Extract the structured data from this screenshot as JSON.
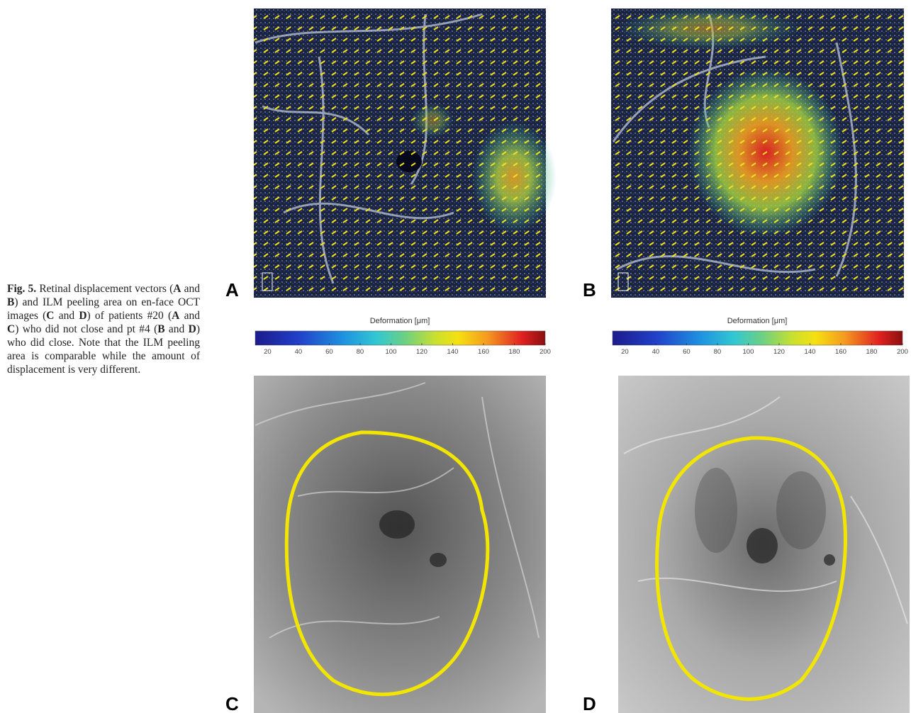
{
  "figure": {
    "caption": [
      {
        "text": "Fig. 5.",
        "bold": true
      },
      {
        "text": " Retinal displacement vectors (",
        "bold": false
      },
      {
        "text": "A",
        "bold": true
      },
      {
        "text": " and ",
        "bold": false
      },
      {
        "text": "B",
        "bold": true
      },
      {
        "text": ") and ILM peeling area on en-face OCT images (",
        "bold": false
      },
      {
        "text": "C",
        "bold": true
      },
      {
        "text": " and ",
        "bold": false
      },
      {
        "text": "D",
        "bold": true
      },
      {
        "text": ") of patients #20 (",
        "bold": false
      },
      {
        "text": "A",
        "bold": true
      },
      {
        "text": " and ",
        "bold": false
      },
      {
        "text": "C",
        "bold": true
      },
      {
        "text": ") who did not close and pt #4 (",
        "bold": false
      },
      {
        "text": "B",
        "bold": true
      },
      {
        "text": " and ",
        "bold": false
      },
      {
        "text": "D",
        "bold": true
      },
      {
        "text": ") who did close. Note that the ILM peeling area is comparable while the amount of displacement is very different.",
        "bold": false
      }
    ],
    "panels": [
      {
        "label": "A"
      },
      {
        "label": "B"
      },
      {
        "label": "C"
      },
      {
        "label": "D"
      }
    ],
    "colorbars": [
      {
        "label": "Deformation [μm]",
        "range": [
          12,
          200
        ],
        "ticks": [
          20,
          40,
          60,
          80,
          100,
          120,
          140,
          160,
          180,
          200
        ]
      },
      {
        "label": "Deformation [μm]",
        "range": [
          12,
          200
        ],
        "ticks": [
          20,
          40,
          60,
          80,
          100,
          120,
          140,
          160,
          180,
          200
        ]
      }
    ]
  }
}
